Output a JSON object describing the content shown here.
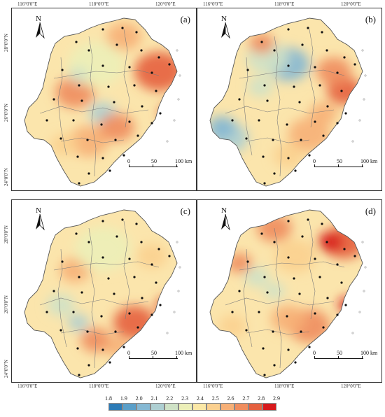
{
  "panels": [
    {
      "id": "a",
      "label": "(a)"
    },
    {
      "id": "b",
      "label": "(b)"
    },
    {
      "id": "c",
      "label": "(c)"
    },
    {
      "id": "d",
      "label": "(d)"
    }
  ],
  "axis": {
    "lon_top": [
      "116°0'0\"E",
      "118°0'0\"E",
      "120°0'0\"E"
    ],
    "lon_bottom": [
      "116°0'0\"E",
      "118°0'0\"E",
      "120°0'0\"E"
    ],
    "lat_left": [
      "28°0'0\"N",
      "26°0'0\"N",
      "24°0'0\"N"
    ],
    "lat_right": [
      "28°0'0\"N",
      "26°0'0\"N",
      "24°0'0\"N"
    ]
  },
  "north_label": "N",
  "scalebar": {
    "labels": [
      "0",
      "50",
      "100 km"
    ]
  },
  "legend": {
    "values": [
      "1.8",
      "1.9",
      "2.0",
      "2.1",
      "2.2",
      "2.3",
      "2.4",
      "2.5",
      "2.6",
      "2.7",
      "2.8",
      "2.9"
    ],
    "colors": [
      "#2c7bb6",
      "#5a9fc9",
      "#85b8d3",
      "#aecfd2",
      "#cfe2c6",
      "#ecefb8",
      "#fbe8a6",
      "#fbd08f",
      "#f7b077",
      "#f08d5e",
      "#e5603f",
      "#d7191c"
    ]
  },
  "colors": {
    "land_base": "#fbe5ac",
    "sea": "#ffffff",
    "boundary": "#7a7a7a",
    "station": "#111111"
  }
}
